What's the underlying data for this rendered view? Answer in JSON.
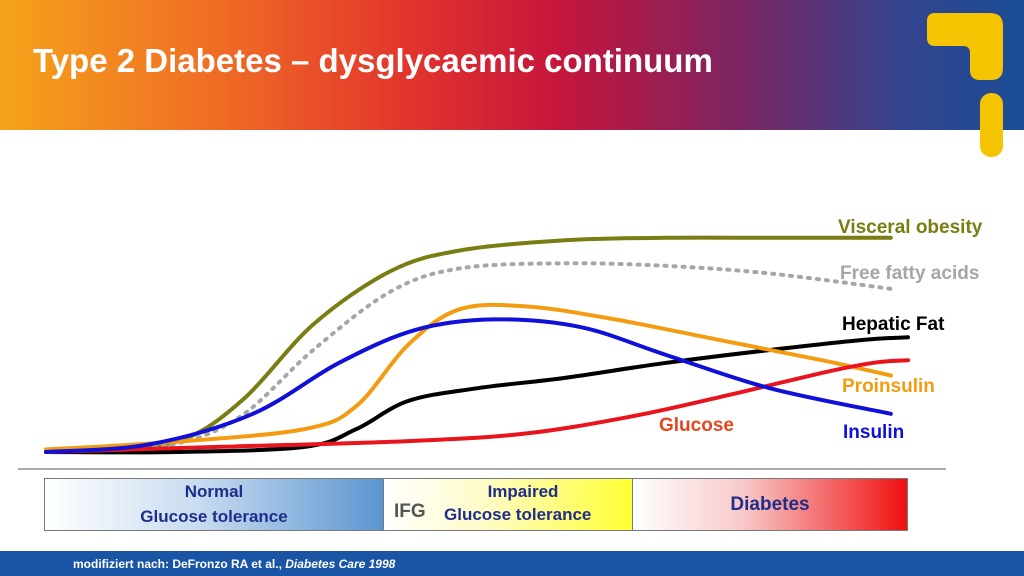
{
  "title": "Type 2 Diabetes – dysglycaemic continuum",
  "footer": {
    "prefix": "modifiziert nach: DeFronzo RA et al., ",
    "journal": "Diabetes Care 1998"
  },
  "stages": {
    "normal_line1": "Normal",
    "normal_line2": "Glucose tolerance",
    "ifg": "IFG",
    "impaired_line1": "Impaired",
    "impaired_line2": "Glucose tolerance",
    "diabetes": "Diabetes"
  },
  "colors": {
    "visceral_obesity": "#7a7d12",
    "free_fatty_acids": "#a6a6a6",
    "hepatic_fat": "#000000",
    "proinsulin": "#f39c12",
    "glucose": "#e8141e",
    "insulin": "#1010d8",
    "glucose_label": "#e8461e",
    "brand_yellow": "#f5c400"
  },
  "icons": [
    "logo-icon"
  ],
  "chart_data": {
    "type": "line",
    "title": "",
    "xlabel": "",
    "ylabel": "",
    "x_domain": [
      0,
      100
    ],
    "y_domain": [
      0,
      100
    ],
    "grid": false,
    "series": [
      {
        "name": "Visceral obesity",
        "key": "visceral_obesity",
        "style": "solid",
        "points": [
          [
            0,
            0
          ],
          [
            8,
            1
          ],
          [
            16,
            5
          ],
          [
            23,
            21
          ],
          [
            31,
            50
          ],
          [
            40,
            71
          ],
          [
            48,
            79
          ],
          [
            60,
            83
          ],
          [
            72,
            84
          ],
          [
            84,
            84
          ],
          [
            98,
            84
          ]
        ]
      },
      {
        "name": "Free fatty acids",
        "key": "free_fatty_acids",
        "style": "dotted",
        "points": [
          [
            0,
            0
          ],
          [
            8,
            1
          ],
          [
            16,
            4
          ],
          [
            23,
            15
          ],
          [
            31,
            40
          ],
          [
            40,
            63
          ],
          [
            48,
            72
          ],
          [
            60,
            74
          ],
          [
            72,
            73
          ],
          [
            84,
            70
          ],
          [
            98,
            64
          ]
        ]
      },
      {
        "name": "Hepatic Fat",
        "key": "hepatic_fat",
        "style": "solid",
        "points": [
          [
            0,
            0
          ],
          [
            15,
            0
          ],
          [
            30,
            2
          ],
          [
            36,
            9
          ],
          [
            42,
            20
          ],
          [
            50,
            25
          ],
          [
            60,
            29
          ],
          [
            72,
            35
          ],
          [
            84,
            40
          ],
          [
            95,
            44
          ],
          [
            100,
            45
          ]
        ]
      },
      {
        "name": "Proinsulin",
        "key": "proinsulin",
        "style": "solid",
        "points": [
          [
            0,
            1
          ],
          [
            15,
            4
          ],
          [
            30,
            9
          ],
          [
            36,
            18
          ],
          [
            42,
            42
          ],
          [
            48,
            56
          ],
          [
            56,
            57
          ],
          [
            66,
            52
          ],
          [
            78,
            44
          ],
          [
            90,
            36
          ],
          [
            98,
            30
          ]
        ]
      },
      {
        "name": "Glucose",
        "key": "glucose",
        "style": "solid",
        "points": [
          [
            0,
            0
          ],
          [
            20,
            2
          ],
          [
            40,
            4
          ],
          [
            55,
            7
          ],
          [
            68,
            14
          ],
          [
            80,
            23
          ],
          [
            90,
            31
          ],
          [
            96,
            35
          ],
          [
            100,
            36
          ]
        ]
      },
      {
        "name": "Insulin",
        "key": "insulin",
        "style": "solid",
        "points": [
          [
            0,
            0
          ],
          [
            12,
            3
          ],
          [
            24,
            15
          ],
          [
            34,
            35
          ],
          [
            43,
            48
          ],
          [
            52,
            52
          ],
          [
            62,
            49
          ],
          [
            72,
            38
          ],
          [
            84,
            25
          ],
          [
            98,
            15
          ]
        ]
      }
    ],
    "labels": {
      "visceral_obesity": "Visceral obesity",
      "free_fatty_acids": "Free fatty acids",
      "hepatic_fat": "Hepatic Fat",
      "proinsulin": "Proinsulin",
      "glucose": "Glucose",
      "insulin": "Insulin"
    }
  }
}
